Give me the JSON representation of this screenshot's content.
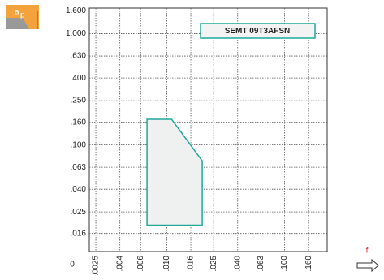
{
  "chart_data": {
    "type": "area",
    "icon_label": "a",
    "icon_sub": "p",
    "origin_label": "0",
    "legend_label": "SEMT 09T3AFSN",
    "x_axis_label": "f",
    "xscale": "log",
    "yscale": "log",
    "grid": true,
    "xlim": [
      0.0022,
      0.23
    ],
    "ylim": [
      0.011,
      1.7
    ],
    "xticks": [
      {
        "value": 0.0025,
        "label": ".0025"
      },
      {
        "value": 0.004,
        "label": ".004"
      },
      {
        "value": 0.006,
        "label": ".006"
      },
      {
        "value": 0.01,
        "label": ".010"
      },
      {
        "value": 0.016,
        "label": ".016"
      },
      {
        "value": 0.025,
        "label": ".025"
      },
      {
        "value": 0.04,
        "label": ".040"
      },
      {
        "value": 0.063,
        "label": ".063"
      },
      {
        "value": 0.1,
        "label": ".100"
      },
      {
        "value": 0.16,
        "label": ".160"
      }
    ],
    "yticks": [
      {
        "value": 1.6,
        "label": "1.600"
      },
      {
        "value": 1.0,
        "label": "1.000"
      },
      {
        "value": 0.63,
        "label": ".630"
      },
      {
        "value": 0.4,
        "label": ".400"
      },
      {
        "value": 0.25,
        "label": ".250"
      },
      {
        "value": 0.16,
        "label": ".160"
      },
      {
        "value": 0.1,
        "label": ".100"
      },
      {
        "value": 0.063,
        "label": ".063"
      },
      {
        "value": 0.04,
        "label": ".040"
      },
      {
        "value": 0.025,
        "label": ".025"
      },
      {
        "value": 0.016,
        "label": ".016"
      }
    ],
    "series": [
      {
        "name": "SEMT 09T3AFSN",
        "color": "#1fa89a",
        "fill": "#eef1f0",
        "x": [
          0.0068,
          0.011,
          0.02,
          0.02,
          0.0068
        ],
        "values": [
          0.17,
          0.17,
          0.072,
          0.019,
          0.019
        ]
      }
    ]
  }
}
